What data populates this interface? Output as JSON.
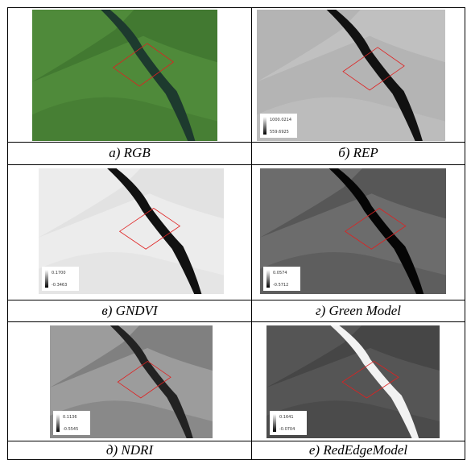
{
  "panels": [
    {
      "caption": "а) RGB",
      "legend": null
    },
    {
      "caption": "б) REP",
      "legend": [
        "1000.0214",
        "559.6925"
      ]
    },
    {
      "caption": "в) GNDVI",
      "legend": [
        "0.1700",
        "-0.3463"
      ]
    },
    {
      "caption": "г) Green Model",
      "legend": [
        "0.0574",
        "-0.5712"
      ]
    },
    {
      "caption": "д) NDRI",
      "legend": [
        "0.1136",
        "-0.5545"
      ]
    },
    {
      "caption": "е) RedEdgeModel",
      "legend": [
        "0.1641",
        "-0.0704"
      ]
    }
  ]
}
